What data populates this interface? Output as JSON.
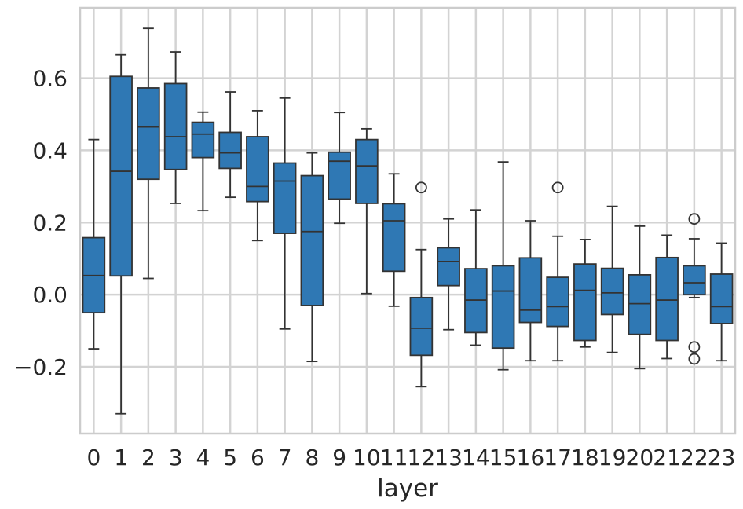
{
  "chart_data": {
    "type": "box",
    "xlabel": "layer",
    "ylabel": "",
    "ylim": [
      -0.385,
      0.795
    ],
    "yticks": [
      -0.2,
      0.0,
      0.2,
      0.4,
      0.6
    ],
    "ytick_labels": [
      "−0.2",
      "0.0",
      "0.2",
      "0.4",
      "0.6"
    ],
    "grid": true,
    "box_color": "#2f78b4",
    "line_color": "#333333",
    "grid_color": "#d3d3d3",
    "categories": [
      "0",
      "1",
      "2",
      "3",
      "4",
      "5",
      "6",
      "7",
      "8",
      "9",
      "10",
      "11",
      "12",
      "13",
      "14",
      "15",
      "16",
      "17",
      "18",
      "19",
      "20",
      "21",
      "22",
      "23"
    ],
    "boxes": [
      {
        "layer": "0",
        "whisker_low": -0.15,
        "q1": -0.05,
        "median": 0.053,
        "q3": 0.158,
        "whisker_high": 0.43,
        "outliers": []
      },
      {
        "layer": "1",
        "whisker_low": -0.33,
        "q1": 0.052,
        "median": 0.342,
        "q3": 0.605,
        "whisker_high": 0.665,
        "outliers": []
      },
      {
        "layer": "2",
        "whisker_low": 0.045,
        "q1": 0.32,
        "median": 0.465,
        "q3": 0.573,
        "whisker_high": 0.738,
        "outliers": []
      },
      {
        "layer": "3",
        "whisker_low": 0.253,
        "q1": 0.347,
        "median": 0.438,
        "q3": 0.585,
        "whisker_high": 0.673,
        "outliers": []
      },
      {
        "layer": "4",
        "whisker_low": 0.233,
        "q1": 0.38,
        "median": 0.445,
        "q3": 0.478,
        "whisker_high": 0.506,
        "outliers": []
      },
      {
        "layer": "5",
        "whisker_low": 0.27,
        "q1": 0.35,
        "median": 0.393,
        "q3": 0.45,
        "whisker_high": 0.562,
        "outliers": []
      },
      {
        "layer": "6",
        "whisker_low": 0.15,
        "q1": 0.258,
        "median": 0.3,
        "q3": 0.438,
        "whisker_high": 0.51,
        "outliers": []
      },
      {
        "layer": "7",
        "whisker_low": -0.095,
        "q1": 0.17,
        "median": 0.315,
        "q3": 0.365,
        "whisker_high": 0.545,
        "outliers": []
      },
      {
        "layer": "8",
        "whisker_low": -0.185,
        "q1": -0.03,
        "median": 0.175,
        "q3": 0.33,
        "whisker_high": 0.393,
        "outliers": []
      },
      {
        "layer": "9",
        "whisker_low": 0.198,
        "q1": 0.265,
        "median": 0.37,
        "q3": 0.395,
        "whisker_high": 0.505,
        "outliers": []
      },
      {
        "layer": "10",
        "whisker_low": 0.003,
        "q1": 0.253,
        "median": 0.357,
        "q3": 0.43,
        "whisker_high": 0.46,
        "outliers": []
      },
      {
        "layer": "11",
        "whisker_low": -0.032,
        "q1": 0.065,
        "median": 0.205,
        "q3": 0.252,
        "whisker_high": 0.335,
        "outliers": []
      },
      {
        "layer": "12",
        "whisker_low": -0.255,
        "q1": -0.168,
        "median": -0.093,
        "q3": -0.008,
        "whisker_high": 0.125,
        "outliers": [
          0.297
        ]
      },
      {
        "layer": "13",
        "whisker_low": -0.097,
        "q1": 0.025,
        "median": 0.092,
        "q3": 0.13,
        "whisker_high": 0.21,
        "outliers": []
      },
      {
        "layer": "14",
        "whisker_low": -0.14,
        "q1": -0.105,
        "median": -0.015,
        "q3": 0.072,
        "whisker_high": 0.235,
        "outliers": []
      },
      {
        "layer": "15",
        "whisker_low": -0.208,
        "q1": -0.148,
        "median": 0.01,
        "q3": 0.08,
        "whisker_high": 0.368,
        "outliers": []
      },
      {
        "layer": "16",
        "whisker_low": -0.183,
        "q1": -0.077,
        "median": -0.043,
        "q3": 0.102,
        "whisker_high": 0.205,
        "outliers": []
      },
      {
        "layer": "17",
        "whisker_low": -0.183,
        "q1": -0.088,
        "median": -0.033,
        "q3": 0.048,
        "whisker_high": 0.162,
        "outliers": [
          0.297
        ]
      },
      {
        "layer": "18",
        "whisker_low": -0.145,
        "q1": -0.127,
        "median": 0.012,
        "q3": 0.085,
        "whisker_high": 0.153,
        "outliers": []
      },
      {
        "layer": "19",
        "whisker_low": -0.16,
        "q1": -0.055,
        "median": 0.005,
        "q3": 0.073,
        "whisker_high": 0.245,
        "outliers": []
      },
      {
        "layer": "20",
        "whisker_low": -0.205,
        "q1": -0.11,
        "median": -0.025,
        "q3": 0.055,
        "whisker_high": 0.19,
        "outliers": []
      },
      {
        "layer": "21",
        "whisker_low": -0.177,
        "q1": -0.127,
        "median": -0.015,
        "q3": 0.103,
        "whisker_high": 0.165,
        "outliers": []
      },
      {
        "layer": "22",
        "whisker_low": -0.008,
        "q1": 0.0,
        "median": 0.033,
        "q3": 0.08,
        "whisker_high": 0.155,
        "outliers": [
          0.21,
          -0.145,
          -0.178
        ]
      },
      {
        "layer": "23",
        "whisker_low": -0.183,
        "q1": -0.08,
        "median": -0.033,
        "q3": 0.057,
        "whisker_high": 0.143,
        "outliers": []
      }
    ]
  }
}
